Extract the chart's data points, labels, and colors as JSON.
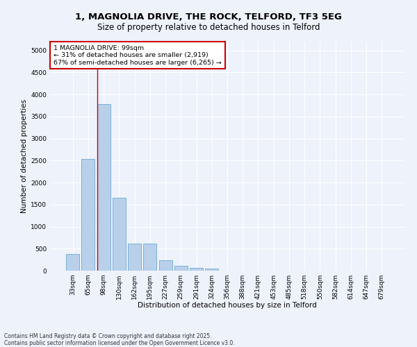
{
  "title_line1": "1, MAGNOLIA DRIVE, THE ROCK, TELFORD, TF3 5EG",
  "title_line2": "Size of property relative to detached houses in Telford",
  "xlabel": "Distribution of detached houses by size in Telford",
  "ylabel": "Number of detached properties",
  "categories": [
    "33sqm",
    "65sqm",
    "98sqm",
    "130sqm",
    "162sqm",
    "195sqm",
    "227sqm",
    "259sqm",
    "291sqm",
    "324sqm",
    "356sqm",
    "388sqm",
    "421sqm",
    "453sqm",
    "485sqm",
    "518sqm",
    "550sqm",
    "582sqm",
    "614sqm",
    "647sqm",
    "679sqm"
  ],
  "values": [
    380,
    2530,
    3780,
    1650,
    620,
    620,
    230,
    110,
    60,
    45,
    5,
    2,
    0,
    0,
    0,
    0,
    0,
    0,
    0,
    0,
    0
  ],
  "bar_color": "#b8d0ea",
  "bar_edge_color": "#6aaad4",
  "vline_color": "#cc0000",
  "annotation_text": "1 MAGNOLIA DRIVE: 99sqm\n← 31% of detached houses are smaller (2,919)\n67% of semi-detached houses are larger (6,265) →",
  "annotation_box_color": "#cc0000",
  "annotation_box_facecolor": "white",
  "ylim": [
    0,
    5200
  ],
  "yticks": [
    0,
    500,
    1000,
    1500,
    2000,
    2500,
    3000,
    3500,
    4000,
    4500,
    5000
  ],
  "background_color": "#eef2fb",
  "grid_color": "white",
  "footer_text": "Contains HM Land Registry data © Crown copyright and database right 2025.\nContains public sector information licensed under the Open Government Licence v3.0.",
  "title_fontsize": 9.5,
  "subtitle_fontsize": 8.5,
  "axis_label_fontsize": 7.5,
  "tick_fontsize": 6.5,
  "annotation_fontsize": 6.8,
  "footer_fontsize": 5.5,
  "vline_bar_index": 2
}
